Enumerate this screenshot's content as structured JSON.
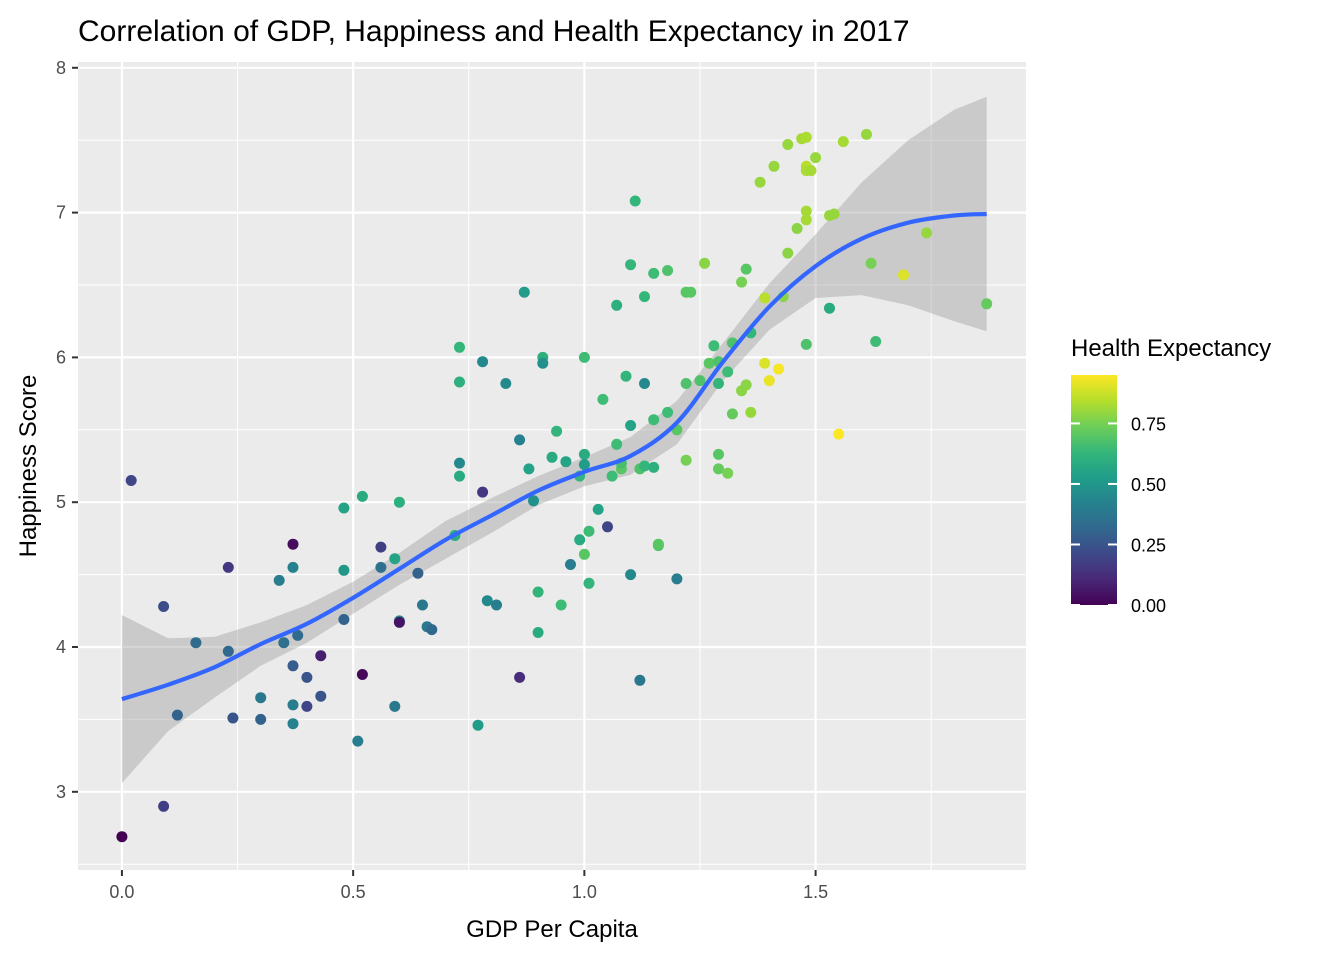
{
  "chart_data": {
    "type": "scatter",
    "title": "Correlation of GDP, Happiness and Health Expectancy in 2017",
    "xlabel": "GDP Per Capita",
    "ylabel": "Happiness Score",
    "xlim": [
      -0.095,
      1.955
    ],
    "ylim": [
      2.46,
      8.04
    ],
    "x_ticks": [
      0.0,
      0.5,
      1.0,
      1.5
    ],
    "x_tick_labels": [
      "0.0",
      "0.5",
      "1.0",
      "1.5"
    ],
    "y_ticks": [
      3,
      4,
      5,
      6,
      7,
      8
    ],
    "y_tick_labels": [
      "3",
      "4",
      "5",
      "6",
      "7",
      "8"
    ],
    "grid": true,
    "legend": {
      "title": "Health Expectancy",
      "placement": "right",
      "range": [
        0,
        0.95
      ],
      "ticks": [
        0.0,
        0.25,
        0.5,
        0.75
      ],
      "tick_labels": [
        "0.00",
        "0.25",
        "0.50",
        "0.75"
      ],
      "colormap": "viridis"
    },
    "colors": {
      "panel_bg": "#ebebeb",
      "grid": "#ffffff",
      "smooth_line": "#3366ff",
      "ribbon": "#999999",
      "viridis_stops": [
        "#440154",
        "#482878",
        "#3e4989",
        "#31688e",
        "#26828e",
        "#1f9e89",
        "#35b779",
        "#6ece58",
        "#b5de2b",
        "#fde725"
      ]
    },
    "points": [
      [
        0.0,
        2.69,
        0.0
      ],
      [
        0.02,
        5.15,
        0.2
      ],
      [
        0.09,
        4.28,
        0.22
      ],
      [
        0.09,
        2.9,
        0.18
      ],
      [
        0.12,
        3.53,
        0.3
      ],
      [
        0.16,
        4.03,
        0.33
      ],
      [
        0.23,
        4.55,
        0.15
      ],
      [
        0.23,
        3.97,
        0.32
      ],
      [
        0.24,
        3.51,
        0.25
      ],
      [
        0.3,
        3.65,
        0.38
      ],
      [
        0.3,
        3.5,
        0.3
      ],
      [
        0.34,
        4.46,
        0.4
      ],
      [
        0.35,
        4.03,
        0.35
      ],
      [
        0.37,
        4.71,
        0.03
      ],
      [
        0.37,
        4.55,
        0.42
      ],
      [
        0.37,
        3.6,
        0.4
      ],
      [
        0.37,
        3.47,
        0.42
      ],
      [
        0.37,
        3.87,
        0.28
      ],
      [
        0.38,
        4.08,
        0.33
      ],
      [
        0.4,
        3.79,
        0.25
      ],
      [
        0.4,
        3.59,
        0.2
      ],
      [
        0.43,
        3.66,
        0.25
      ],
      [
        0.43,
        3.94,
        0.08
      ],
      [
        0.48,
        4.96,
        0.55
      ],
      [
        0.48,
        4.53,
        0.5
      ],
      [
        0.48,
        4.19,
        0.3
      ],
      [
        0.51,
        3.35,
        0.4
      ],
      [
        0.52,
        5.04,
        0.58
      ],
      [
        0.52,
        3.81,
        0.02
      ],
      [
        0.56,
        4.69,
        0.18
      ],
      [
        0.56,
        4.55,
        0.35
      ],
      [
        0.59,
        4.61,
        0.55
      ],
      [
        0.59,
        3.59,
        0.38
      ],
      [
        0.6,
        5.0,
        0.6
      ],
      [
        0.6,
        4.18,
        0.45
      ],
      [
        0.6,
        4.17,
        0.05
      ],
      [
        0.64,
        4.51,
        0.3
      ],
      [
        0.65,
        4.29,
        0.38
      ],
      [
        0.66,
        4.14,
        0.38
      ],
      [
        0.67,
        4.12,
        0.32
      ],
      [
        0.72,
        4.77,
        0.58
      ],
      [
        0.73,
        5.27,
        0.45
      ],
      [
        0.73,
        5.18,
        0.58
      ],
      [
        0.73,
        5.83,
        0.6
      ],
      [
        0.73,
        6.07,
        0.63
      ],
      [
        0.77,
        3.46,
        0.52
      ],
      [
        0.78,
        5.97,
        0.45
      ],
      [
        0.78,
        5.07,
        0.15
      ],
      [
        0.79,
        4.32,
        0.45
      ],
      [
        0.81,
        4.29,
        0.4
      ],
      [
        0.83,
        5.82,
        0.45
      ],
      [
        0.86,
        5.43,
        0.42
      ],
      [
        0.86,
        3.79,
        0.12
      ],
      [
        0.87,
        6.45,
        0.52
      ],
      [
        0.88,
        5.23,
        0.55
      ],
      [
        0.89,
        5.01,
        0.48
      ],
      [
        0.9,
        4.38,
        0.62
      ],
      [
        0.9,
        4.1,
        0.58
      ],
      [
        0.91,
        6.0,
        0.6
      ],
      [
        0.91,
        5.96,
        0.48
      ],
      [
        0.93,
        5.31,
        0.58
      ],
      [
        0.94,
        5.49,
        0.62
      ],
      [
        0.95,
        4.29,
        0.65
      ],
      [
        0.96,
        5.28,
        0.55
      ],
      [
        0.97,
        4.57,
        0.4
      ],
      [
        0.99,
        5.18,
        0.63
      ],
      [
        0.99,
        4.74,
        0.58
      ],
      [
        1.0,
        5.33,
        0.58
      ],
      [
        1.0,
        5.26,
        0.52
      ],
      [
        1.0,
        4.64,
        0.7
      ],
      [
        1.0,
        6.0,
        0.65
      ],
      [
        1.01,
        4.8,
        0.65
      ],
      [
        1.01,
        4.44,
        0.62
      ],
      [
        1.03,
        4.95,
        0.55
      ],
      [
        1.04,
        5.71,
        0.65
      ],
      [
        1.05,
        4.83,
        0.2
      ],
      [
        1.06,
        5.18,
        0.65
      ],
      [
        1.07,
        5.4,
        0.65
      ],
      [
        1.07,
        6.36,
        0.6
      ],
      [
        1.08,
        5.23,
        0.7
      ],
      [
        1.08,
        5.27,
        0.67
      ],
      [
        1.09,
        5.87,
        0.62
      ],
      [
        1.1,
        5.53,
        0.55
      ],
      [
        1.11,
        7.08,
        0.63
      ],
      [
        1.1,
        6.64,
        0.63
      ],
      [
        1.1,
        4.5,
        0.45
      ],
      [
        1.12,
        5.23,
        0.68
      ],
      [
        1.13,
        5.25,
        0.63
      ],
      [
        1.13,
        6.42,
        0.63
      ],
      [
        1.13,
        5.82,
        0.45
      ],
      [
        1.12,
        3.77,
        0.38
      ],
      [
        1.15,
        6.58,
        0.65
      ],
      [
        1.15,
        5.24,
        0.6
      ],
      [
        1.15,
        5.57,
        0.65
      ],
      [
        1.16,
        4.7,
        0.68
      ],
      [
        1.16,
        4.71,
        0.7
      ],
      [
        1.18,
        6.6,
        0.68
      ],
      [
        1.18,
        5.62,
        0.65
      ],
      [
        1.2,
        5.5,
        0.7
      ],
      [
        1.2,
        4.47,
        0.4
      ],
      [
        1.22,
        6.45,
        0.7
      ],
      [
        1.22,
        5.82,
        0.68
      ],
      [
        1.22,
        5.29,
        0.75
      ],
      [
        1.23,
        6.45,
        0.7
      ],
      [
        1.25,
        5.84,
        0.68
      ],
      [
        1.26,
        6.65,
        0.78
      ],
      [
        1.27,
        5.96,
        0.7
      ],
      [
        1.28,
        6.08,
        0.65
      ],
      [
        1.29,
        5.97,
        0.68
      ],
      [
        1.29,
        5.82,
        0.62
      ],
      [
        1.29,
        5.33,
        0.7
      ],
      [
        1.29,
        5.23,
        0.72
      ],
      [
        1.31,
        5.9,
        0.65
      ],
      [
        1.31,
        5.2,
        0.75
      ],
      [
        1.32,
        6.1,
        0.68
      ],
      [
        1.32,
        5.61,
        0.72
      ],
      [
        1.34,
        6.52,
        0.75
      ],
      [
        1.34,
        5.77,
        0.78
      ],
      [
        1.35,
        6.61,
        0.7
      ],
      [
        1.35,
        5.81,
        0.78
      ],
      [
        1.36,
        5.62,
        0.8
      ],
      [
        1.36,
        6.17,
        0.63
      ],
      [
        1.38,
        7.21,
        0.8
      ],
      [
        1.39,
        6.41,
        0.85
      ],
      [
        1.39,
        5.96,
        0.9
      ],
      [
        1.4,
        5.84,
        0.92
      ],
      [
        1.41,
        7.32,
        0.8
      ],
      [
        1.42,
        5.92,
        0.94
      ],
      [
        1.43,
        6.42,
        0.78
      ],
      [
        1.44,
        7.47,
        0.8
      ],
      [
        1.44,
        6.72,
        0.78
      ],
      [
        1.46,
        6.89,
        0.78
      ],
      [
        1.47,
        7.51,
        0.82
      ],
      [
        1.48,
        7.52,
        0.83
      ],
      [
        1.48,
        7.32,
        0.85
      ],
      [
        1.48,
        7.29,
        0.83
      ],
      [
        1.49,
        7.29,
        0.82
      ],
      [
        1.48,
        7.01,
        0.82
      ],
      [
        1.48,
        6.95,
        0.82
      ],
      [
        1.48,
        6.09,
        0.68
      ],
      [
        1.5,
        7.38,
        0.8
      ],
      [
        1.53,
        6.98,
        0.8
      ],
      [
        1.53,
        6.34,
        0.58
      ],
      [
        1.54,
        6.99,
        0.8
      ],
      [
        1.55,
        5.47,
        0.95
      ],
      [
        1.56,
        7.49,
        0.82
      ],
      [
        1.61,
        7.54,
        0.8
      ],
      [
        1.62,
        6.65,
        0.75
      ],
      [
        1.63,
        6.11,
        0.65
      ],
      [
        1.69,
        6.57,
        0.9
      ],
      [
        1.74,
        6.86,
        0.8
      ],
      [
        1.87,
        6.37,
        0.72
      ]
    ],
    "smooth_fit": {
      "method": "loess",
      "x": [
        0.0,
        0.1,
        0.2,
        0.3,
        0.4,
        0.5,
        0.6,
        0.7,
        0.8,
        0.9,
        1.0,
        1.1,
        1.2,
        1.3,
        1.4,
        1.5,
        1.6,
        1.7,
        1.8,
        1.87
      ],
      "y": [
        3.64,
        3.74,
        3.86,
        4.02,
        4.16,
        4.34,
        4.54,
        4.74,
        4.91,
        5.08,
        5.21,
        5.32,
        5.55,
        5.97,
        6.35,
        6.63,
        6.82,
        6.93,
        6.98,
        6.99
      ],
      "lower": [
        3.06,
        3.42,
        3.65,
        3.87,
        4.03,
        4.23,
        4.43,
        4.61,
        4.79,
        4.98,
        5.11,
        5.19,
        5.4,
        5.84,
        6.19,
        6.41,
        6.43,
        6.36,
        6.25,
        6.18
      ],
      "upper": [
        4.22,
        4.06,
        4.07,
        4.17,
        4.29,
        4.45,
        4.65,
        4.87,
        5.03,
        5.18,
        5.31,
        5.45,
        5.7,
        6.1,
        6.51,
        6.85,
        7.21,
        7.5,
        7.71,
        7.8
      ]
    }
  }
}
